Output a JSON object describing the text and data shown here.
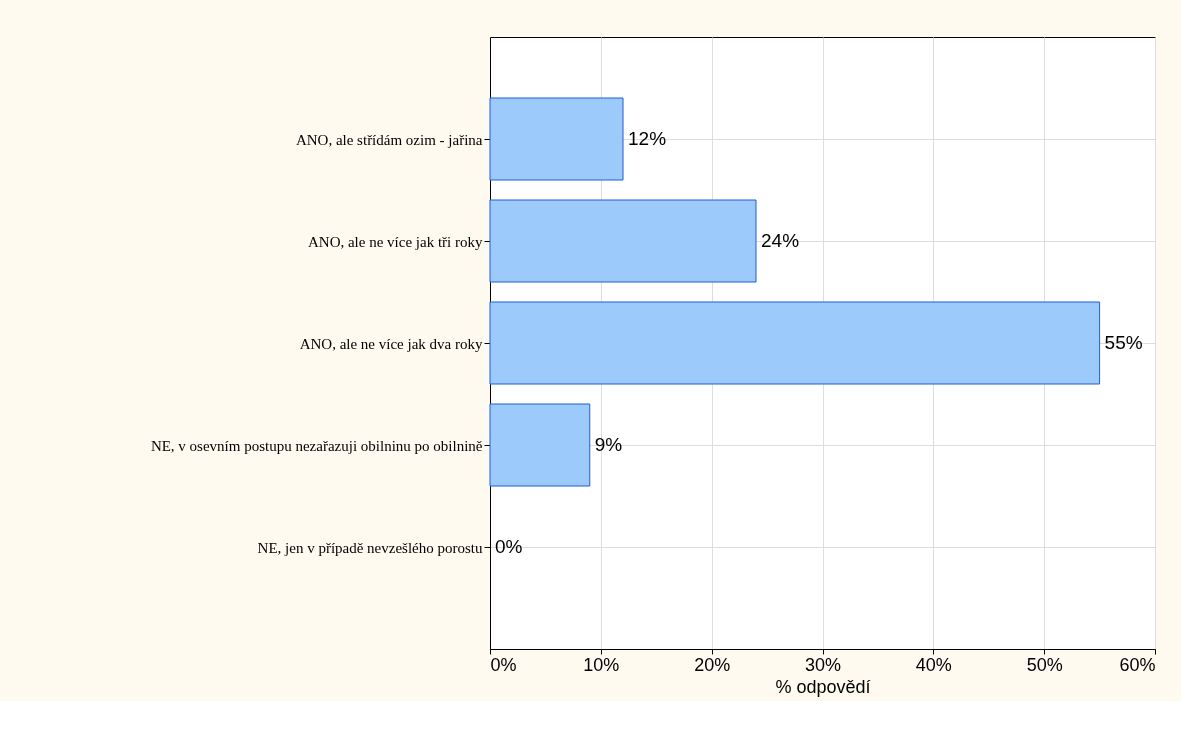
{
  "chart_data": {
    "type": "bar",
    "orientation": "horizontal",
    "xlabel": "% odpovědí",
    "categories": [
      "ANO, ale střídám ozim - jařina",
      "ANO, ale ne více jak tři roky",
      "ANO, ale ne více jak dva roky",
      "NE, v osevním postupu nezařazuji obilninu po obilnině",
      "NE, jen v případě nevzešlého porostu"
    ],
    "values": [
      12,
      24,
      55,
      9,
      0
    ],
    "value_labels": [
      "12%",
      "24%",
      "55%",
      "9%",
      "0%"
    ],
    "color": "#9ccafa",
    "xlim": [
      0,
      60
    ],
    "xticks": [
      {
        "value": 0,
        "label": "0%"
      },
      {
        "value": 10,
        "label": "10%"
      },
      {
        "value": 20,
        "label": "20%"
      },
      {
        "value": 30,
        "label": "30%"
      },
      {
        "value": 40,
        "label": "40%"
      },
      {
        "value": 50,
        "label": "50%"
      },
      {
        "value": 60,
        "label": "60%"
      }
    ],
    "grid": true
  }
}
